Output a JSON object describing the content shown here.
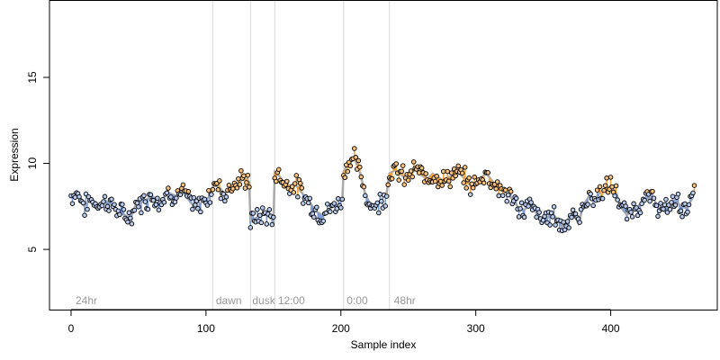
{
  "chart_data": {
    "type": "scatter",
    "title": "",
    "xlabel": "Sample index",
    "ylabel": "Expression",
    "xlim": [
      -16,
      479
    ],
    "ylim": [
      1.5,
      19.5
    ],
    "xticks": [
      0,
      100,
      200,
      300,
      400
    ],
    "yticks": [
      5,
      10,
      15
    ],
    "x_tick_labels": [
      "0",
      "100",
      "200",
      "300",
      "400"
    ],
    "y_tick_labels": [
      "5",
      "10",
      "15"
    ],
    "grid": false,
    "legend": "none",
    "colors": {
      "above_mean_fill": "#f4a53a",
      "below_mean_fill": "#7d9dd8",
      "smooth_line": "#aaaaaa",
      "point_edge": "#000000",
      "point_fill": "#ffffff",
      "divider": "#d9d9d9",
      "annotation_text": "#9a9a9a"
    },
    "mean_level": 8.3,
    "phase_dividers": [
      105,
      133,
      151,
      202,
      236
    ],
    "phase_labels": [
      {
        "label": "24hr",
        "x": 2
      },
      {
        "label": "dawn",
        "x": 106
      },
      {
        "label": "dusk",
        "x": 133
      },
      {
        "label": "12:00",
        "x": 152
      },
      {
        "label": "0:00",
        "x": 203
      },
      {
        "label": "48hr",
        "x": 238
      }
    ],
    "anchors": [
      [
        0,
        8.1
      ],
      [
        5,
        8.3
      ],
      [
        8,
        7.8
      ],
      [
        10,
        7.5
      ],
      [
        14,
        7.9
      ],
      [
        20,
        7.6
      ],
      [
        26,
        7.8
      ],
      [
        32,
        7.5
      ],
      [
        36,
        7.1
      ],
      [
        40,
        7.0
      ],
      [
        44,
        6.8
      ],
      [
        48,
        7.6
      ],
      [
        54,
        7.8
      ],
      [
        60,
        8.1
      ],
      [
        66,
        7.8
      ],
      [
        72,
        8.3
      ],
      [
        78,
        8.1
      ],
      [
        82,
        8.4
      ],
      [
        86,
        8.0
      ],
      [
        90,
        7.6
      ],
      [
        94,
        7.4
      ],
      [
        98,
        7.9
      ],
      [
        102,
        8.0
      ],
      [
        106,
        8.8
      ],
      [
        110,
        8.6
      ],
      [
        114,
        8.2
      ],
      [
        118,
        8.7
      ],
      [
        122,
        8.8
      ],
      [
        126,
        9.0
      ],
      [
        130,
        9.1
      ],
      [
        132,
        8.9
      ],
      [
        133,
        6.6
      ],
      [
        136,
        6.8
      ],
      [
        140,
        6.9
      ],
      [
        144,
        7.1
      ],
      [
        148,
        6.8
      ],
      [
        150,
        6.6
      ],
      [
        151,
        9.5
      ],
      [
        154,
        9.3
      ],
      [
        158,
        8.9
      ],
      [
        162,
        8.7
      ],
      [
        166,
        8.8
      ],
      [
        170,
        8.4
      ],
      [
        174,
        8.0
      ],
      [
        178,
        7.6
      ],
      [
        182,
        7.2
      ],
      [
        186,
        7.0
      ],
      [
        190,
        7.2
      ],
      [
        194,
        7.5
      ],
      [
        198,
        7.6
      ],
      [
        201,
        7.9
      ],
      [
        202,
        9.5
      ],
      [
        206,
        10.1
      ],
      [
        210,
        10.3
      ],
      [
        214,
        9.5
      ],
      [
        218,
        8.2
      ],
      [
        222,
        7.6
      ],
      [
        226,
        7.5
      ],
      [
        230,
        7.9
      ],
      [
        234,
        8.3
      ],
      [
        236,
        9.4
      ],
      [
        240,
        9.6
      ],
      [
        244,
        9.4
      ],
      [
        248,
        9.1
      ],
      [
        252,
        9.4
      ],
      [
        256,
        9.7
      ],
      [
        260,
        9.3
      ],
      [
        264,
        9.1
      ],
      [
        268,
        9.4
      ],
      [
        272,
        9.2
      ],
      [
        276,
        9.0
      ],
      [
        280,
        9.2
      ],
      [
        284,
        9.3
      ],
      [
        288,
        9.4
      ],
      [
        292,
        9.1
      ],
      [
        296,
        8.7
      ],
      [
        300,
        8.8
      ],
      [
        304,
        9.2
      ],
      [
        308,
        9.4
      ],
      [
        312,
        9.0
      ],
      [
        316,
        8.6
      ],
      [
        320,
        8.4
      ],
      [
        324,
        8.2
      ],
      [
        328,
        7.8
      ],
      [
        332,
        7.4
      ],
      [
        336,
        7.3
      ],
      [
        340,
        7.6
      ],
      [
        344,
        7.2
      ],
      [
        348,
        6.8
      ],
      [
        352,
        6.7
      ],
      [
        356,
        7.1
      ],
      [
        360,
        6.8
      ],
      [
        364,
        6.3
      ],
      [
        368,
        6.7
      ],
      [
        372,
        7.2
      ],
      [
        376,
        6.5
      ],
      [
        380,
        7.6
      ],
      [
        384,
        8.1
      ],
      [
        388,
        7.9
      ],
      [
        392,
        8.3
      ],
      [
        396,
        8.5
      ],
      [
        400,
        8.7
      ],
      [
        404,
        8.3
      ],
      [
        408,
        7.4
      ],
      [
        412,
        7.0
      ],
      [
        416,
        7.3
      ],
      [
        420,
        7.5
      ],
      [
        424,
        7.8
      ],
      [
        428,
        8.0
      ],
      [
        432,
        7.9
      ],
      [
        436,
        7.4
      ],
      [
        440,
        7.2
      ],
      [
        444,
        7.6
      ],
      [
        448,
        7.9
      ],
      [
        452,
        7.5
      ],
      [
        456,
        7.4
      ],
      [
        460,
        7.9
      ],
      [
        462,
        8.3
      ]
    ]
  }
}
